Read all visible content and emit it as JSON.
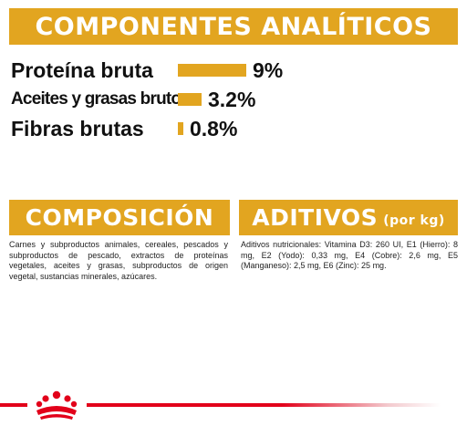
{
  "header": {
    "title": "COMPONENTES ANALÍTICOS"
  },
  "nutrients": [
    {
      "label": "Proteína bruta",
      "value": "9%",
      "percent": 9
    },
    {
      "label": "Aceites y grasas brutos",
      "value": "3.2%",
      "percent": 3.2
    },
    {
      "label": "Fibras brutas",
      "value": "0.8%",
      "percent": 0.8
    }
  ],
  "composicion": {
    "title": "COMPOSICIÓN",
    "text": "Carnes y subproductos animales, cereales, pescados y subproductos de pescado, extractos de proteínas vegetales, aceites y grasas, subproductos de origen vegetal, sustancias minerales, azúcares."
  },
  "aditivos": {
    "title": "ADITIVOS",
    "title_suffix": "(por kg)",
    "text": "Aditivos nutricionales: Vitamina D3: 260 UI, E1 (Hierro): 8 mg, E2 (Yodo): 0,33 mg, E4 (Cobre): 2,6 mg, E5 (Manganeso): 2,5 mg, E6 (Zinc): 25 mg."
  },
  "footer": {
    "logo_icon": "royal-canin-crown-icon"
  },
  "colors": {
    "accent": "#e2a520",
    "brand_red": "#e2001a",
    "banner_text": "#ffffff"
  }
}
